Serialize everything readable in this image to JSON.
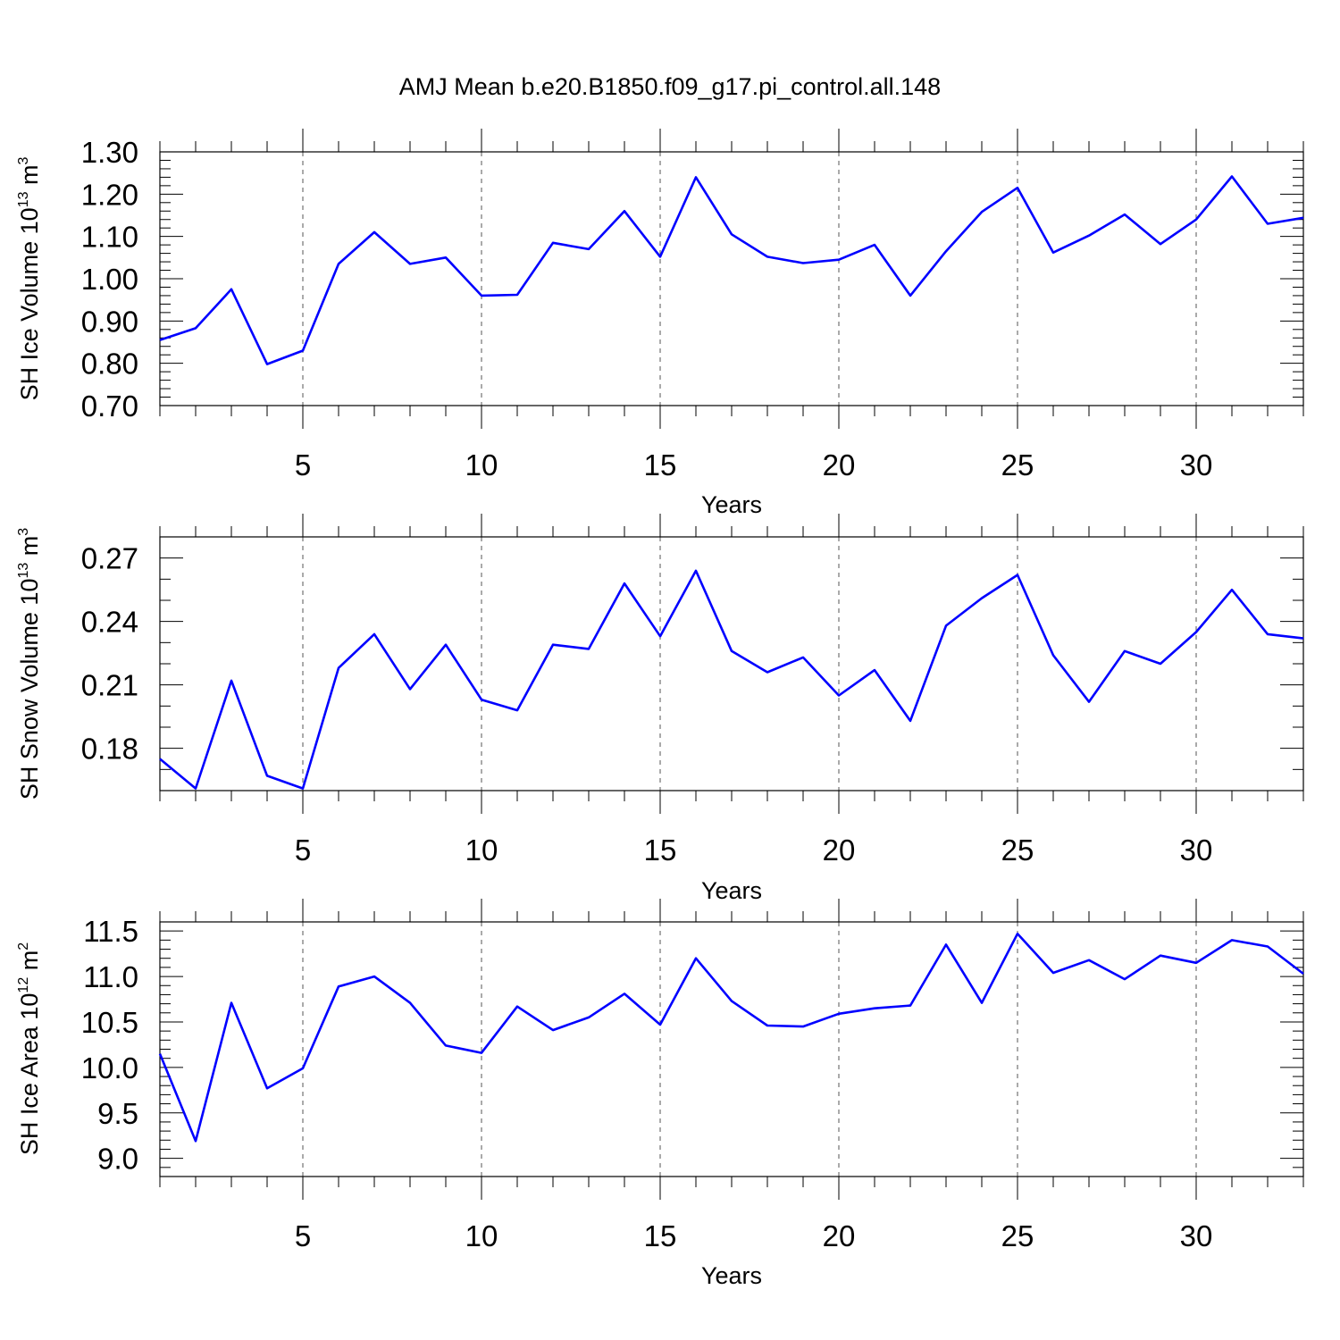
{
  "figure": {
    "title": "AMJ Mean b.e20.B1850.f09_g17.pi_control.all.148",
    "line_color": "#0000ff"
  },
  "chart_data": [
    {
      "type": "line",
      "title": "",
      "xlabel": "Years",
      "ylabel": "SH Ice Volume 10",
      "ylabel_exponent": "13",
      "ylabel_unit": "m",
      "ylabel_unit_exponent": "3",
      "xlim": [
        1,
        33
      ],
      "ylim": [
        0.7,
        1.3
      ],
      "xticks": [
        5,
        10,
        15,
        20,
        25,
        30
      ],
      "xtick_labels": [
        "5",
        "10",
        "15",
        "20",
        "25",
        "30"
      ],
      "yticks": [
        0.7,
        0.8,
        0.9,
        1.0,
        1.1,
        1.2,
        1.3
      ],
      "ytick_labels": [
        "0.70",
        "0.80",
        "0.90",
        "1.00",
        "1.10",
        "1.20",
        "1.30"
      ],
      "grid": "vertical dashed at major x ticks",
      "x": [
        1,
        2,
        3,
        4,
        5,
        6,
        7,
        8,
        9,
        10,
        11,
        12,
        13,
        14,
        15,
        16,
        17,
        18,
        19,
        20,
        21,
        22,
        23,
        24,
        25,
        26,
        27,
        28,
        29,
        30,
        31,
        32,
        33
      ],
      "series": [
        {
          "values": [
            0.855,
            0.883,
            0.975,
            0.798,
            0.83,
            1.035,
            1.11,
            1.035,
            1.05,
            0.96,
            0.962,
            1.085,
            1.07,
            1.16,
            1.052,
            1.24,
            1.105,
            1.052,
            1.037,
            1.045,
            1.08,
            0.96,
            1.065,
            1.158,
            1.215,
            1.062,
            1.102,
            1.152,
            1.082,
            1.14,
            1.242,
            1.13,
            1.144
          ]
        }
      ]
    },
    {
      "type": "line",
      "title": "",
      "xlabel": "Years",
      "ylabel": "SH Snow Volume 10",
      "ylabel_exponent": "13",
      "ylabel_unit": "m",
      "ylabel_unit_exponent": "3",
      "xlim": [
        1,
        33
      ],
      "ylim": [
        0.16,
        0.28
      ],
      "xticks": [
        5,
        10,
        15,
        20,
        25,
        30
      ],
      "xtick_labels": [
        "5",
        "10",
        "15",
        "20",
        "25",
        "30"
      ],
      "yticks": [
        0.18,
        0.21,
        0.24,
        0.27
      ],
      "ytick_labels": [
        "0.18",
        "0.21",
        "0.24",
        "0.27"
      ],
      "grid": "vertical dashed at major x ticks",
      "x": [
        1,
        2,
        3,
        4,
        5,
        6,
        7,
        8,
        9,
        10,
        11,
        12,
        13,
        14,
        15,
        16,
        17,
        18,
        19,
        20,
        21,
        22,
        23,
        24,
        25,
        26,
        27,
        28,
        29,
        30,
        31,
        32,
        33
      ],
      "series": [
        {
          "values": [
            0.175,
            0.161,
            0.212,
            0.167,
            0.161,
            0.218,
            0.234,
            0.208,
            0.229,
            0.203,
            0.198,
            0.229,
            0.227,
            0.258,
            0.233,
            0.264,
            0.226,
            0.216,
            0.223,
            0.205,
            0.217,
            0.193,
            0.238,
            0.251,
            0.262,
            0.224,
            0.202,
            0.226,
            0.22,
            0.235,
            0.255,
            0.234,
            0.232
          ]
        }
      ]
    },
    {
      "type": "line",
      "title": "",
      "xlabel": "Years",
      "ylabel": "SH Ice Area 10",
      "ylabel_exponent": "12",
      "ylabel_unit": "m",
      "ylabel_unit_exponent": "2",
      "xlim": [
        1,
        33
      ],
      "ylim": [
        8.8,
        11.6
      ],
      "xticks": [
        5,
        10,
        15,
        20,
        25,
        30
      ],
      "xtick_labels": [
        "5",
        "10",
        "15",
        "20",
        "25",
        "30"
      ],
      "yticks": [
        9.0,
        9.5,
        10.0,
        10.5,
        11.0,
        11.5
      ],
      "ytick_labels": [
        "9.0",
        "9.5",
        "10.0",
        "10.5",
        "11.0",
        "11.5"
      ],
      "grid": "vertical dashed at major x ticks",
      "x": [
        1,
        2,
        3,
        4,
        5,
        6,
        7,
        8,
        9,
        10,
        11,
        12,
        13,
        14,
        15,
        16,
        17,
        18,
        19,
        20,
        21,
        22,
        23,
        24,
        25,
        26,
        27,
        28,
        29,
        30,
        31,
        32,
        33
      ],
      "series": [
        {
          "values": [
            10.15,
            9.19,
            10.71,
            9.77,
            9.99,
            10.89,
            11.0,
            10.71,
            10.24,
            10.16,
            10.67,
            10.41,
            10.55,
            10.81,
            10.47,
            11.2,
            10.73,
            10.46,
            10.45,
            10.59,
            10.65,
            10.68,
            11.35,
            10.71,
            11.47,
            11.04,
            11.18,
            10.97,
            11.23,
            11.15,
            11.4,
            11.33,
            11.03
          ]
        }
      ]
    }
  ]
}
